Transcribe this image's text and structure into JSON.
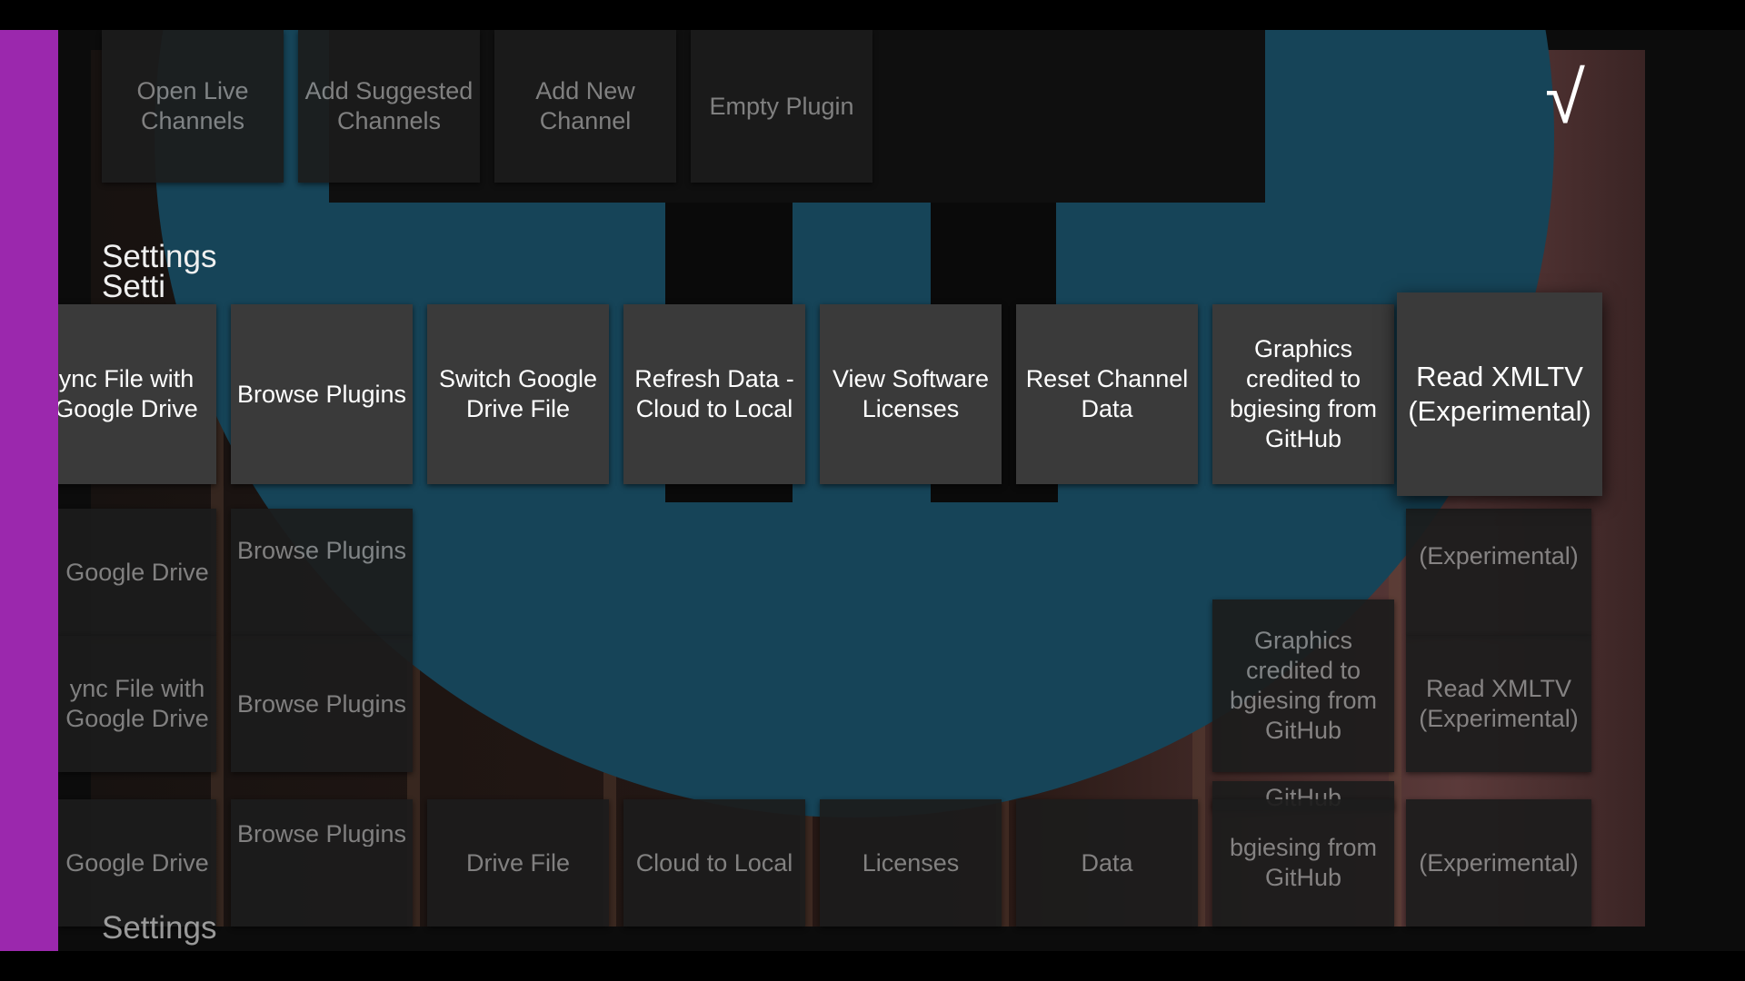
{
  "top_row": {
    "items": [
      {
        "label": "Open Live Channels"
      },
      {
        "label": "Add Suggested Channels"
      },
      {
        "label": "Add New Channel"
      },
      {
        "label": "Empty Plugin"
      }
    ]
  },
  "settings": {
    "title": "Settings",
    "title_clipped": "Setti",
    "items": [
      {
        "label": "Sync File with Google Drive",
        "clipped": "ync File with Google Drive"
      },
      {
        "label": "Browse Plugins"
      },
      {
        "label": "Switch Google Drive File"
      },
      {
        "label": "Refresh Data - Cloud to Local"
      },
      {
        "label": "View Software Licenses"
      },
      {
        "label": "Reset Channel Data"
      },
      {
        "label": "Graphics credited to bgiesing from GitHub"
      },
      {
        "label": "Read XMLTV (Experimental)"
      }
    ]
  },
  "ghost": {
    "row1": {
      "google_drive": "Google Drive",
      "browse": "Browse Plugins",
      "experimental": "(Experimental)"
    },
    "row2": {
      "sync": "ync File with Google Drive",
      "browse": "Browse Plugins",
      "graphics": "Graphics credited to bgiesing from GitHub",
      "xmltv": "Read XMLTV (Experimental)",
      "github": "GitHub"
    },
    "row3": {
      "google_drive": "Google Drive",
      "browse": "Browse Plugins",
      "drive_file": "Drive File",
      "cloud": "Cloud to Local",
      "licenses": "Licenses",
      "data": "Data",
      "bgiesing": "bgiesing from GitHub",
      "experimental": "(Experimental)"
    },
    "bottom_title": "Settings"
  },
  "status": {
    "check_glyph": "√"
  },
  "colors": {
    "nav_strip": "#9b28ad",
    "logo_circle": "#164458",
    "tile_focus": "#3a3a3a",
    "tile": "#262626"
  }
}
